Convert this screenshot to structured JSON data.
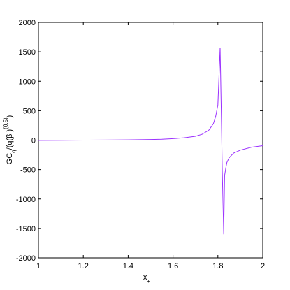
{
  "chart_data": {
    "type": "line",
    "x": [
      1.0,
      1.1,
      1.2,
      1.3,
      1.4,
      1.5,
      1.55,
      1.6,
      1.65,
      1.7,
      1.73,
      1.76,
      1.78,
      1.79,
      1.8,
      1.81,
      1.815,
      1.82,
      1.826,
      1.83,
      1.835,
      1.84,
      1.85,
      1.87,
      1.9,
      1.95,
      2.0
    ],
    "series": [
      {
        "color": "#9b30ff",
        "values": [
          -5,
          -3,
          0,
          2,
          5,
          10,
          15,
          25,
          40,
          65,
          100,
          170,
          280,
          400,
          600,
          1570,
          500,
          -600,
          -1600,
          -600,
          -480,
          -380,
          -300,
          -220,
          -170,
          -120,
          -95
        ]
      }
    ],
    "xlim": [
      1,
      2
    ],
    "xticks": [
      1,
      1.2,
      1.4,
      1.6,
      1.8,
      2
    ],
    "ylim": [
      -2000,
      2000
    ],
    "yticks": [
      -2000,
      -1500,
      -1000,
      -500,
      0,
      500,
      1000,
      1500,
      2000
    ],
    "zero_line": true,
    "xlabel": {
      "main": "x",
      "sub": "+"
    },
    "ylabel": {
      "main": "GC",
      "sub": "q",
      "mid": "/(q(β )",
      "sup": "(0.5)",
      "end": ")"
    }
  }
}
